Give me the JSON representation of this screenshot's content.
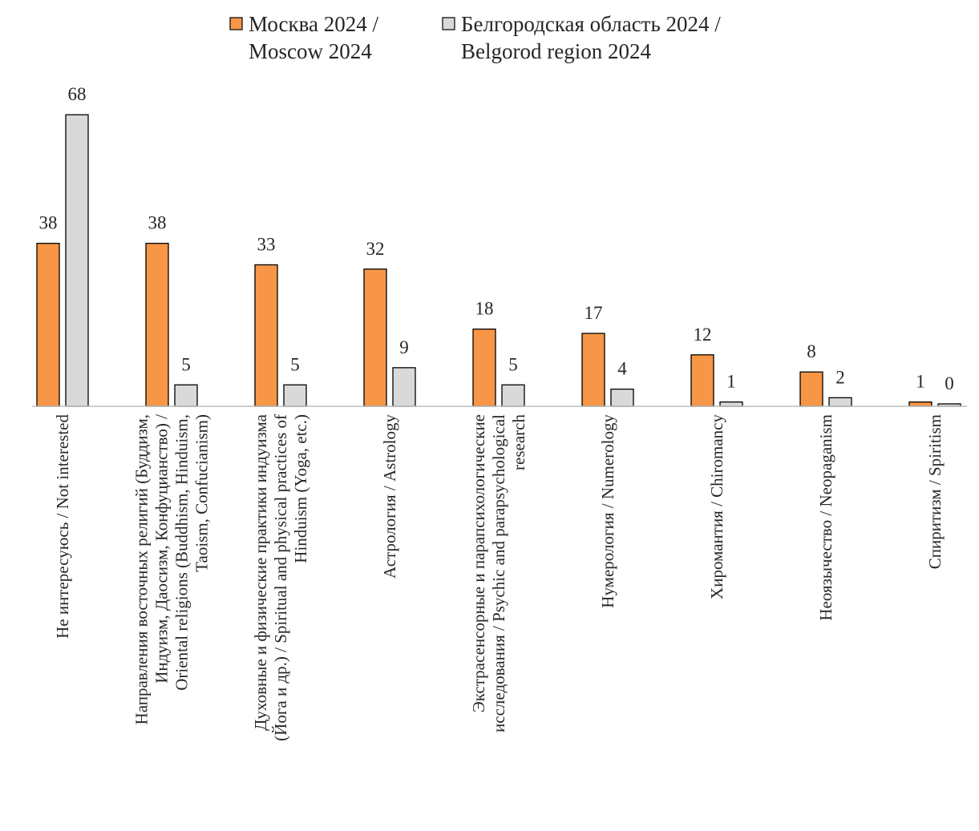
{
  "chart_data": {
    "type": "bar",
    "title": "",
    "xlabel": "",
    "ylabel": "",
    "ylim": [
      0,
      68
    ],
    "grid": false,
    "legend_position": "top",
    "categories": [
      [
        "Не интересуюсь / Not interested"
      ],
      [
        "Направления восточных религий (Буддизм,",
        "Индуизм, Даосизм, Конфуцианство) /",
        "Oriental religions (Buddhism, Hinduism,",
        "Taoism, Confucianism)"
      ],
      [
        "Духовные и физические практики индуизма",
        "(Йога и др.) / Spiritual and physical practices of",
        "Hinduism (Yoga, etc.)"
      ],
      [
        "Астрология / Astrology"
      ],
      [
        "Экстрасенсорные и парапсихологические",
        "исследования / Psychic and parapsychological",
        "research"
      ],
      [
        "Нумерология / Numerology"
      ],
      [
        "Хиромантия / Chiromancy"
      ],
      [
        "Неоязычество / Neopaganism"
      ],
      [
        "Спиритизм / Spiritism"
      ]
    ],
    "series": [
      {
        "name": [
          "Москва 2024 /",
          "Moscow 2024"
        ],
        "color": "#F79646",
        "values": [
          38,
          38,
          33,
          32,
          18,
          17,
          12,
          8,
          1
        ]
      },
      {
        "name": [
          "Белгородская область 2024 /",
          "Belgorod region 2024"
        ],
        "color": "#D9D9D9",
        "values": [
          68,
          5,
          5,
          9,
          5,
          4,
          1,
          2,
          0
        ]
      }
    ]
  }
}
